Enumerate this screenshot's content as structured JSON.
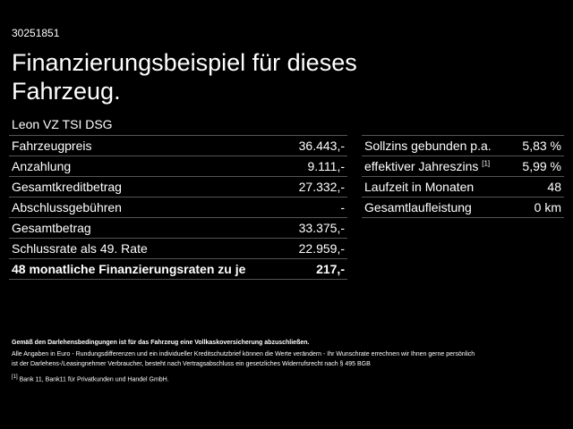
{
  "header": {
    "id": "30251851",
    "title_lines": [
      "Finanzierungsbeispiel für dieses",
      "Fahrzeug."
    ],
    "model": "Leon VZ TSI DSG"
  },
  "left_table": {
    "rows": [
      {
        "label": "Fahrzeugpreis",
        "value": "36.443,-"
      },
      {
        "label": "Anzahlung",
        "value": "9.111,-"
      },
      {
        "label": "Gesamtkreditbetrag",
        "value": "27.332,-"
      },
      {
        "label": "Abschlussgebühren",
        "value": "-"
      },
      {
        "label": "Gesamtbetrag",
        "value": "33.375,-"
      },
      {
        "label": "Schlussrate als 49. Rate",
        "value": "22.959,-"
      },
      {
        "label": "48 monatliche Finanzierungsraten zu je",
        "value": "217,-"
      }
    ]
  },
  "right_table": {
    "rows": [
      {
        "label": "Sollzins gebunden p.a.",
        "value": "5,83 %"
      },
      {
        "label": "effektiver Jahreszins",
        "note": "[1]",
        "value": "5,99 %"
      },
      {
        "label": "Laufzeit in Monaten",
        "value": "48"
      },
      {
        "label": "Gesamtlaufleistung",
        "value": "0 km"
      }
    ]
  },
  "notes": {
    "insurance": "Gemäß den Darlehensbedingungen ist für das Fahrzeug eine Vollkaskoversicherung abzuschließen.",
    "disclaimer_lines": [
      "Alle Angaben in Euro - Rundungsdifferenzen und ein individueller Kreditschutzbrief können die Werte verändern - Ihr Wunschrate errechnen wir Ihnen gerne persönlich",
      "ist der Darlehens-/Leasingnehmer Verbraucher, besteht nach Vertragsabschluss ein gesetzliches Widerrufsrecht nach § 495 BGB"
    ],
    "footnote_marker": "[1]",
    "footnote": "Bank 11, Bank11 für Privatkunden und Handel GmbH."
  }
}
